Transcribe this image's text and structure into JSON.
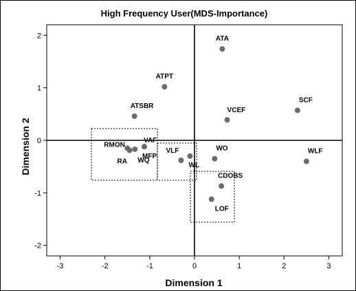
{
  "chart_data": {
    "type": "scatter",
    "title": "High Frequency User(MDS-Importance)",
    "xlabel": "Dimension 1",
    "ylabel": "Dimension 2",
    "xlim": [
      -3.3,
      3.3
    ],
    "ylim": [
      -2.2,
      2.2
    ],
    "xticks": [
      -3,
      -2,
      -1,
      0,
      1,
      2,
      3
    ],
    "yticks": [
      2,
      1,
      0,
      -1,
      -2
    ],
    "grid": false,
    "point_color": "#6b6b6b",
    "points": [
      {
        "label": "ATA",
        "x": 0.62,
        "y": 1.74
      },
      {
        "label": "ATPT",
        "x": -0.67,
        "y": 1.02
      },
      {
        "label": "SCF",
        "x": 2.3,
        "y": 0.57
      },
      {
        "label": "ATSBR",
        "x": -1.34,
        "y": 0.46
      },
      {
        "label": "VCEF",
        "x": 0.73,
        "y": 0.39
      },
      {
        "label": "RMON",
        "x": -1.5,
        "y": -0.15
      },
      {
        "label": "RA",
        "x": -1.45,
        "y": -0.19
      },
      {
        "label": "WQ",
        "x": -1.33,
        "y": -0.17
      },
      {
        "label": "VAF",
        "x": -1.12,
        "y": -0.12
      },
      {
        "label": "MFP",
        "x": -1.12,
        "y": -0.12
      },
      {
        "label": "VLF",
        "x": -0.3,
        "y": -0.38
      },
      {
        "label": "WL",
        "x": -0.1,
        "y": -0.3
      },
      {
        "label": "WO",
        "x": 0.45,
        "y": -0.35
      },
      {
        "label": "WLF",
        "x": 2.5,
        "y": -0.4
      },
      {
        "label": "CDOBS",
        "x": 0.6,
        "y": -0.87
      },
      {
        "label": "LOF",
        "x": 0.38,
        "y": -1.12
      }
    ]
  }
}
